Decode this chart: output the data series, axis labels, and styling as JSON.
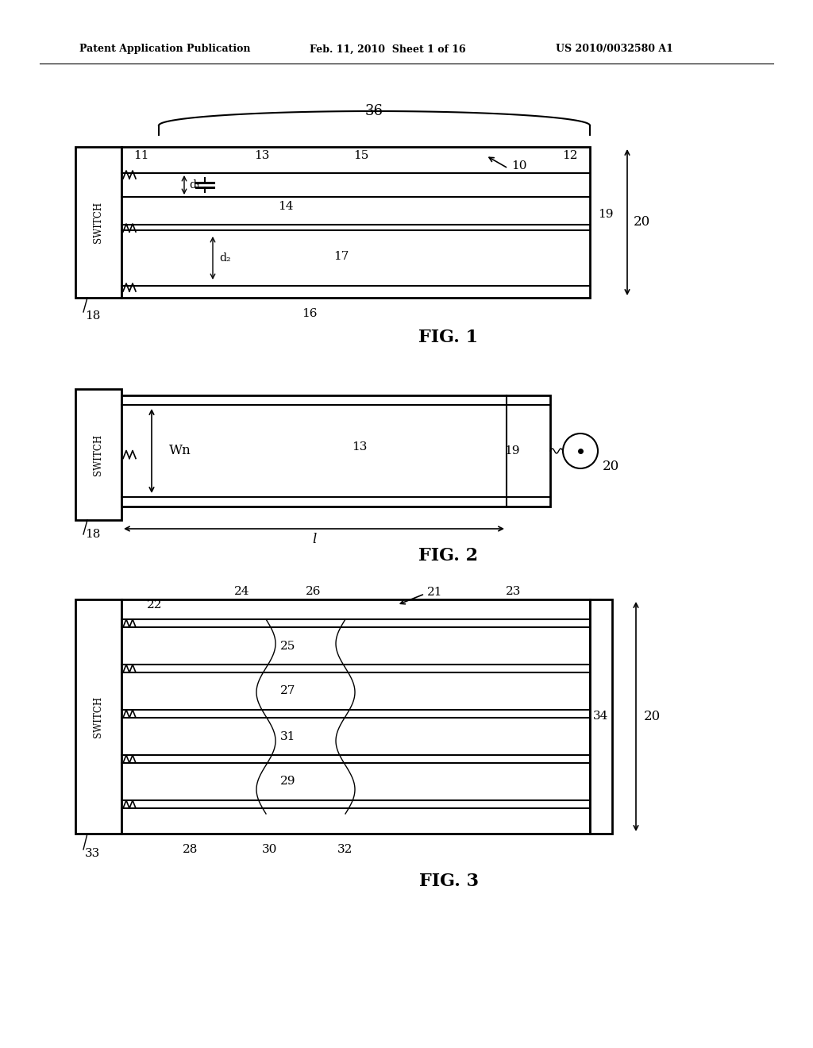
{
  "bg_color": "#ffffff",
  "header_left": "Patent Application Publication",
  "header_mid": "Feb. 11, 2010  Sheet 1 of 16",
  "header_right": "US 2010/0032580 A1",
  "fig1_caption": "FIG. 1",
  "fig2_caption": "FIG. 2",
  "fig3_caption": "FIG. 3"
}
